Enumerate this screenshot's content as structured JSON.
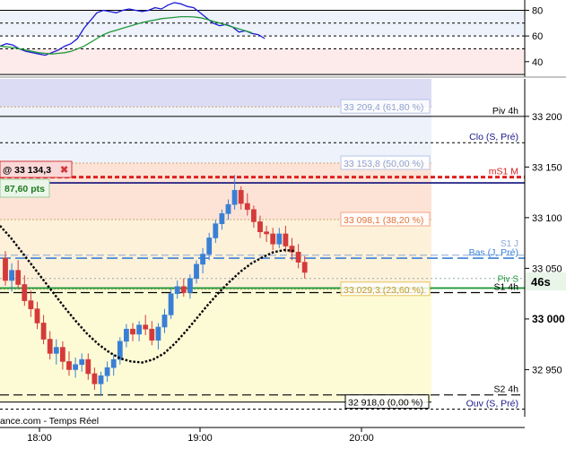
{
  "chart_data": [
    {
      "type": "line",
      "series": [
        {
          "values": [
            52,
            54,
            53,
            50,
            48,
            47,
            46,
            45,
            47,
            49,
            52,
            54,
            58,
            66,
            72,
            78,
            80,
            79,
            78,
            80,
            81,
            80,
            79,
            80,
            82,
            81,
            84,
            86,
            85,
            83,
            82,
            78,
            74,
            70,
            68,
            69,
            67,
            63,
            64,
            62,
            61,
            58
          ]
        },
        {
          "values": [
            52,
            51.5,
            51,
            50,
            49,
            48,
            47,
            46.5,
            46,
            46.5,
            47,
            48,
            50,
            52,
            55,
            58,
            61,
            63,
            64.5,
            66,
            67.5,
            69,
            70.5,
            71.5,
            72.5,
            73.5,
            74,
            74.5,
            75,
            75,
            74.8,
            74.2,
            73,
            71.5,
            70,
            68.5,
            67,
            65.5,
            64,
            62.5
          ]
        }
      ],
      "yticks": [
        "80",
        "60",
        "40"
      ],
      "ylim": [
        28,
        88
      ],
      "levels": [
        80,
        70,
        60,
        50,
        30
      ]
    },
    {
      "type": "candlestick",
      "ylim": [
        32903.5,
        33237
      ],
      "yticks": [
        "33 200",
        "33 150",
        "33 100",
        "33 050",
        "33 000",
        "32 950"
      ],
      "xticks": [
        "18:00",
        "19:00",
        "20:00"
      ],
      "candles": [
        [
          33060,
          33067,
          33033,
          33038
        ],
        [
          33038,
          33055,
          33027,
          33048
        ],
        [
          33048,
          33058,
          33030,
          33034
        ],
        [
          33034,
          33043,
          33013,
          33018
        ],
        [
          33018,
          33028,
          33002,
          33010
        ],
        [
          33010,
          33017,
          32990,
          32996
        ],
        [
          32996,
          33004,
          32975,
          32980
        ],
        [
          32980,
          32988,
          32960,
          32966
        ],
        [
          32966,
          32980,
          32955,
          32972
        ],
        [
          32972,
          32978,
          32950,
          32958
        ],
        [
          32958,
          32968,
          32944,
          32950
        ],
        [
          32950,
          32962,
          32942,
          32955
        ],
        [
          32955,
          32966,
          32948,
          32960
        ],
        [
          32960,
          32966,
          32940,
          32946
        ],
        [
          32946,
          32952,
          32930,
          32936
        ],
        [
          32936,
          32948,
          32924,
          32944
        ],
        [
          32944,
          32958,
          32938,
          32952
        ],
        [
          32952,
          32965,
          32944,
          32960
        ],
        [
          32960,
          32982,
          32955,
          32978
        ],
        [
          32978,
          32995,
          32972,
          32990
        ],
        [
          32990,
          32996,
          32978,
          32985
        ],
        [
          32985,
          32998,
          32978,
          32994
        ],
        [
          32994,
          33004,
          32984,
          32990
        ],
        [
          32990,
          32998,
          32974,
          32979
        ],
        [
          32979,
          32996,
          32970,
          32992
        ],
        [
          32992,
          33010,
          32986,
          33004
        ],
        [
          33004,
          33030,
          33000,
          33025
        ],
        [
          33025,
          33038,
          33020,
          33032
        ],
        [
          33032,
          33040,
          33022,
          33026
        ],
        [
          33026,
          33044,
          33020,
          33040
        ],
        [
          33040,
          33058,
          33035,
          33054
        ],
        [
          33054,
          33070,
          33045,
          33064
        ],
        [
          33064,
          33085,
          33058,
          33080
        ],
        [
          33080,
          33098,
          33075,
          33094
        ],
        [
          33094,
          33108,
          33088,
          33104
        ],
        [
          33104,
          33118,
          33098,
          33113
        ],
        [
          33113,
          33142,
          33108,
          33127
        ],
        [
          33127,
          33131,
          33108,
          33114
        ],
        [
          33114,
          33124,
          33102,
          33108
        ],
        [
          33108,
          33112,
          33090,
          33096
        ],
        [
          33096,
          33102,
          33080,
          33086
        ],
        [
          33086,
          33092,
          33076,
          33084
        ],
        [
          33084,
          33090,
          33068,
          33074
        ],
        [
          33074,
          33090,
          33070,
          33084
        ],
        [
          33084,
          33092,
          33066,
          33072
        ],
        [
          33072,
          33080,
          33058,
          33066
        ],
        [
          33066,
          33074,
          33050,
          33056
        ],
        [
          33056,
          33062,
          33040,
          33046
        ]
      ],
      "moving_average": [
        33092,
        33080,
        33066,
        33052,
        33038,
        33024,
        33010,
        32997,
        32985,
        32975,
        32967,
        32961,
        32958,
        32957,
        32960,
        32966,
        32976,
        32988,
        33001,
        33014,
        33026,
        33037,
        33047,
        33055,
        33061,
        33066,
        33068,
        33067
      ],
      "fib_levels": [
        {
          "label": "33 209,4 (61,80 %)",
          "value": 33209.4
        },
        {
          "label": "33 153,8 (50,00 %)",
          "value": 33153.8
        },
        {
          "label": "33 098,1 (38,20 %)",
          "value": 33098.1
        },
        {
          "label": "33 029,3 (23,60 %)",
          "value": 33029.3
        },
        {
          "label": "32 918,0 (0,00 %)",
          "value": 32918.0
        }
      ],
      "pivot_levels": [
        {
          "label": "Piv 4h",
          "value": 33200
        },
        {
          "label": "Clo (S, Pré)",
          "value": 33174
        },
        {
          "label": "mS1 M",
          "value": 33140
        },
        {
          "label": "Bas (J, Pré)",
          "value": 33060
        },
        {
          "label": "S1 4h",
          "value": 33026
        },
        {
          "label": "S2 4h",
          "value": 32925
        },
        {
          "label": "Ouv (S, Pré)",
          "value": 32911
        }
      ],
      "extra_labels": [
        "S1 J",
        "Piv S"
      ],
      "order": {
        "label": "@ 33 134,3",
        "value": 33134.3,
        "pnl": "87,60 pts",
        "close": "✖"
      },
      "countdown": "46s",
      "source": "ance.com - Temps Réel"
    }
  ]
}
